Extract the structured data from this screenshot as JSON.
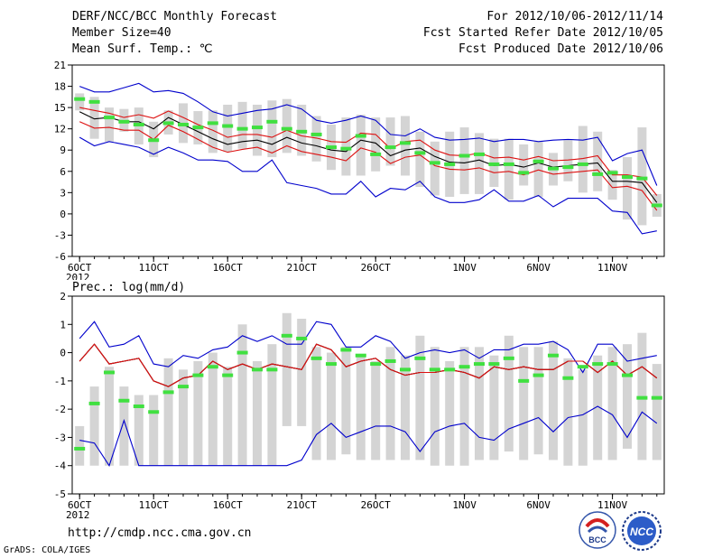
{
  "header": {
    "title": "DERF/NCC/BCC Monthly Forecast",
    "member_size": "Member Size=40",
    "variable": "Mean Surf. Temp.: ℃",
    "period": "For 2012/10/06-2012/11/14",
    "fcst_started": "Fcst Started Refer Date 2012/10/05",
    "fcst_produced": "Fcst Produced Date 2012/10/06"
  },
  "footer": {
    "url": "http://cmdp.ncc.cma.gov.cn",
    "grads": "GrADS: COLA/IGES",
    "logo_bcc_text": "BCC",
    "logo_ncc_text": "NCC"
  },
  "colors": {
    "box": "#d4d4d4",
    "mean_marker": "#40e040",
    "outer_line": "#0000cc",
    "inner_line": "#dd1111",
    "ensemble_line": "#000000",
    "axis": "#000000"
  },
  "chart_data": [
    {
      "type": "line",
      "title": "Mean Surf. Temp.: ℃",
      "x_ticks": [
        "6OCT",
        "11OCT",
        "16OCT",
        "21OCT",
        "26OCT",
        "1NOV",
        "6NOV",
        "11NOV"
      ],
      "x_tick_days": [
        1,
        6,
        11,
        16,
        21,
        27,
        32,
        37
      ],
      "x_year_label": "2012",
      "x_count": 40,
      "ylim": [
        -6,
        21
      ],
      "y_ticks": [
        -6,
        -3,
        0,
        3,
        6,
        9,
        12,
        15,
        18,
        21
      ],
      "series": [
        {
          "name": "max",
          "values": [
            18,
            17.2,
            17.2,
            17.8,
            18.4,
            17.2,
            17.4,
            17,
            15.8,
            14.4,
            13.8,
            14.2,
            14.6,
            14.8,
            15.4,
            14.8,
            13.2,
            12.8,
            13.2,
            13.8,
            13.2,
            11.2,
            11,
            12,
            10.8,
            10.4,
            10.5,
            10.7,
            10.2,
            10.5,
            10.5,
            10.2,
            10.4,
            10.5,
            10.4,
            10.8,
            7.5,
            8.5,
            9,
            4
          ]
        },
        {
          "name": "p75",
          "values": [
            15,
            14.6,
            14.2,
            13.6,
            14,
            13.5,
            14.5,
            13.6,
            12.6,
            11.8,
            10.8,
            11.2,
            11.2,
            10.8,
            11.8,
            11,
            10.7,
            10.2,
            10.1,
            11.4,
            11.2,
            9.2,
            10.2,
            10.4,
            9,
            8.3,
            8.2,
            8.6,
            7.9,
            8,
            7.6,
            8.1,
            7.5,
            7.6,
            7.8,
            8.2,
            5.5,
            5.5,
            5.2,
            2.6
          ]
        },
        {
          "name": "mean",
          "values": [
            14.4,
            13.4,
            13.6,
            13,
            13,
            12,
            13.6,
            12.6,
            11.6,
            10.6,
            9.8,
            10.2,
            10.4,
            9.8,
            10.8,
            10,
            9.6,
            9,
            8.8,
            10.4,
            10,
            8.2,
            9,
            9.3,
            8.1,
            7.3,
            7.2,
            7.6,
            6.8,
            7,
            6.6,
            7.2,
            6.6,
            6.8,
            7,
            7.2,
            4.6,
            4.6,
            4.4,
            1.6
          ]
        },
        {
          "name": "p25",
          "values": [
            13,
            12.1,
            12.2,
            11.8,
            11.8,
            10.5,
            12.5,
            11.6,
            10.5,
            9.4,
            8.7,
            9.1,
            9.4,
            8.6,
            9.6,
            8.8,
            8.4,
            8,
            7.5,
            9.3,
            8.7,
            7.1,
            8,
            8.3,
            6.8,
            6.3,
            6.2,
            6.5,
            5.8,
            6,
            5.5,
            6.2,
            5.6,
            5.8,
            6,
            6.2,
            3.7,
            3.9,
            3.3,
            0.5
          ]
        },
        {
          "name": "min",
          "values": [
            10.8,
            9.6,
            10.2,
            9.8,
            9.4,
            8.4,
            9.4,
            8.6,
            7.6,
            7.6,
            7.4,
            6,
            6,
            7.6,
            4.4,
            4,
            3.6,
            2.8,
            2.8,
            4.6,
            2.4,
            3.6,
            3.4,
            4.6,
            2.4,
            1.6,
            1.6,
            2,
            3.4,
            1.8,
            1.8,
            2.6,
            1,
            2.2,
            2.2,
            2.2,
            0.4,
            0.2,
            -2.8,
            -2.4
          ]
        },
        {
          "name": "member_mean_marker",
          "values": [
            16.2,
            15.8,
            13.6,
            13,
            12.6,
            10.4,
            12.8,
            12.6,
            12.2,
            12.8,
            12.4,
            12,
            12.2,
            13,
            12,
            11.6,
            11.2,
            9.4,
            9.2,
            11,
            8.4,
            9.4,
            10,
            8.6,
            7.2,
            7,
            8.2,
            8.4,
            7,
            7,
            5.8,
            7.4,
            6.4,
            6.6,
            7,
            5.6,
            5.8,
            5.2,
            5,
            1.2
          ]
        },
        {
          "name": "box_high",
          "values": [
            17,
            16.5,
            15,
            14.8,
            15,
            13,
            14.6,
            15.6,
            14.5,
            14.6,
            15.4,
            15.8,
            15.4,
            16,
            16.2,
            15.4,
            13.8,
            12.6,
            13.6,
            14,
            13.6,
            13.6,
            13.8,
            11.6,
            10.2,
            11.6,
            12.2,
            11.4,
            10.6,
            10.6,
            9.8,
            10.2,
            8.6,
            10.4,
            12.4,
            11.6,
            6.2,
            8,
            12.2,
            2.8
          ]
        },
        {
          "name": "box_low",
          "values": [
            14.6,
            10.6,
            10.2,
            11.6,
            9.8,
            8,
            11.2,
            10,
            9.8,
            8.6,
            8.8,
            9.2,
            8.2,
            8,
            8.6,
            8.2,
            7.4,
            6.2,
            5.4,
            5.4,
            6,
            6.8,
            5.4,
            3.8,
            2.6,
            2.4,
            2.8,
            2.8,
            3.8,
            2,
            4,
            2.4,
            4,
            4.6,
            3,
            3.2,
            2,
            -0.8,
            -1.6,
            -0.4
          ]
        }
      ]
    },
    {
      "type": "line",
      "title": "Prec.: log(mm/d)",
      "x_ticks": [
        "6OCT",
        "11OCT",
        "16OCT",
        "21OCT",
        "26OCT",
        "1NOV",
        "6NOV",
        "11NOV"
      ],
      "x_tick_days": [
        1,
        6,
        11,
        16,
        21,
        27,
        32,
        37
      ],
      "x_year_label": "2012",
      "x_count": 40,
      "ylim": [
        -5,
        2
      ],
      "y_ticks": [
        -5,
        -4,
        -3,
        -2,
        -1,
        0,
        1,
        2
      ],
      "series": [
        {
          "name": "max",
          "values": [
            0.5,
            1.1,
            0.2,
            0.3,
            0.6,
            -0.4,
            -0.5,
            -0.1,
            -0.2,
            0.1,
            0.2,
            0.6,
            0.4,
            0.6,
            0.3,
            0.3,
            1.1,
            1,
            0.2,
            0.2,
            0.6,
            0.4,
            -0.2,
            0,
            0.1,
            0,
            0.1,
            -0.2,
            0.1,
            0.1,
            0.3,
            0.3,
            0.4,
            0.1,
            -0.7,
            0.3,
            0.3,
            -0.3,
            -0.2,
            -0.1
          ]
        },
        {
          "name": "p75",
          "values": [
            -0.3,
            0.3,
            -0.4,
            -0.3,
            -0.2,
            -1,
            -1.2,
            -0.9,
            -0.8,
            -0.3,
            -0.6,
            -0.4,
            -0.6,
            -0.4,
            -0.5,
            -0.6,
            0.3,
            0.1,
            -0.5,
            -0.3,
            -0.2,
            -0.6,
            -0.8,
            -0.7,
            -0.7,
            -0.6,
            -0.7,
            -0.9,
            -0.5,
            -0.6,
            -0.5,
            -0.6,
            -0.6,
            -0.3,
            -0.3,
            -0.7,
            -0.3,
            -0.8,
            -0.5,
            -0.9
          ]
        },
        {
          "name": "mean",
          "values": [
            -0.3,
            0.3,
            -0.4,
            -0.3,
            -0.2,
            -1,
            -1.2,
            -0.9,
            -0.8,
            -0.3,
            -0.6,
            -0.4,
            -0.6,
            -0.4,
            -0.5,
            -0.6,
            0.3,
            0.1,
            -0.5,
            -0.3,
            -0.2,
            -0.6,
            -0.8,
            -0.7,
            -0.7,
            -0.6,
            -0.7,
            -0.9,
            -0.5,
            -0.6,
            -0.5,
            -0.6,
            -0.6,
            -0.3,
            -0.3,
            -0.7,
            -0.3,
            -0.8,
            -0.5,
            -0.9
          ]
        },
        {
          "name": "p25",
          "values": [
            -0.3,
            0.3,
            -0.4,
            -0.3,
            -0.2,
            -1,
            -1.2,
            -0.9,
            -0.8,
            -0.3,
            -0.6,
            -0.4,
            -0.6,
            -0.4,
            -0.5,
            -0.6,
            0.3,
            0.1,
            -0.5,
            -0.3,
            -0.2,
            -0.6,
            -0.8,
            -0.7,
            -0.7,
            -0.6,
            -0.7,
            -0.9,
            -0.5,
            -0.6,
            -0.5,
            -0.6,
            -0.6,
            -0.3,
            -0.3,
            -0.7,
            -0.3,
            -0.8,
            -0.5,
            -0.9
          ]
        },
        {
          "name": "min",
          "values": [
            -3.1,
            -3.2,
            -4,
            -2.4,
            -4,
            -4,
            -4,
            -4,
            -4,
            -4,
            -4,
            -4,
            -4,
            -4,
            -4,
            -3.8,
            -2.9,
            -2.5,
            -3,
            -2.8,
            -2.6,
            -2.6,
            -2.8,
            -3.5,
            -2.8,
            -2.6,
            -2.5,
            -3,
            -3.1,
            -2.7,
            -2.5,
            -2.3,
            -2.8,
            -2.3,
            -2.2,
            -1.9,
            -2.2,
            -3,
            -2.1,
            -2.5
          ]
        },
        {
          "name": "member_mean_marker",
          "values": [
            -3.4,
            -1.8,
            -0.7,
            -1.7,
            -1.9,
            -2.1,
            -1.4,
            -1.2,
            -0.8,
            -0.5,
            -0.8,
            0,
            -0.6,
            -0.6,
            0.6,
            0.5,
            -0.2,
            -0.4,
            0.1,
            -0.1,
            -0.4,
            -0.3,
            -0.6,
            -0.2,
            -0.6,
            -0.6,
            -0.5,
            -0.4,
            -0.4,
            -0.2,
            -1,
            -0.8,
            -0.1,
            -0.9,
            -0.5,
            -0.4,
            -0.4,
            -0.8,
            -1.6,
            -1.6
          ]
        },
        {
          "name": "box_high",
          "values": [
            -2.6,
            -1.2,
            -0.5,
            -1.2,
            -1.5,
            -1.5,
            -0.2,
            -0.6,
            -0.3,
            0,
            -0.5,
            1,
            -0.3,
            0.3,
            1.4,
            1.2,
            0.2,
            0,
            0.2,
            -0.1,
            -0.3,
            0.2,
            -0.1,
            0.6,
            0.2,
            -0.3,
            0.2,
            0.2,
            -0.1,
            0.6,
            0.2,
            0.2,
            0.4,
            -0.2,
            -0.6,
            -0.1,
            0.2,
            0.3,
            0.7,
            -0.4
          ]
        },
        {
          "name": "box_low",
          "values": [
            -4,
            -4,
            -4,
            -4,
            -4,
            -4,
            -4,
            -4,
            -4,
            -4,
            -4,
            -4,
            -4,
            -4,
            -2.6,
            -2.6,
            -3.8,
            -3.8,
            -3.6,
            -3.8,
            -3.8,
            -3.8,
            -3.8,
            -3.8,
            -4,
            -4,
            -4,
            -3.8,
            -3.8,
            -3.5,
            -3.8,
            -3.6,
            -3.8,
            -4,
            -4,
            -3.8,
            -3.8,
            -3.4,
            -3.8,
            -3.8
          ]
        }
      ]
    }
  ]
}
